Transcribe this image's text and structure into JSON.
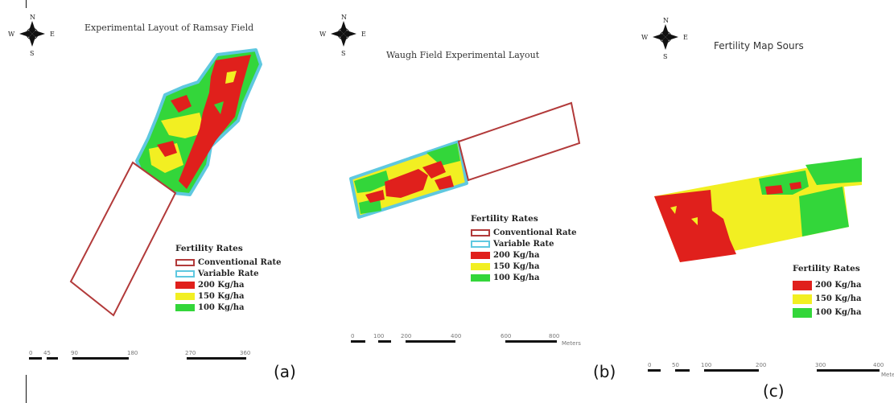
{
  "panels": [
    {
      "id": "a",
      "title": "Experimental Layout of Ramsay Field",
      "panel_label": "(a)",
      "compass": {
        "n": "N",
        "e": "E",
        "s": "S",
        "w": "W"
      },
      "legend": {
        "title": "Fertility Rates",
        "items": [
          {
            "label": "Conventional Rate",
            "kind": "outline",
            "color": "#b23a3a"
          },
          {
            "label": "Variable Rate",
            "kind": "outline",
            "color": "#5fc8e0"
          },
          {
            "label": "200 Kg/ha",
            "kind": "fill",
            "color": "#e0201c"
          },
          {
            "label": "150 Kg/ha",
            "kind": "fill",
            "color": "#f2ef22"
          },
          {
            "label": "100 Kg/ha",
            "kind": "fill",
            "color": "#33d63a"
          }
        ]
      },
      "scale_ticks": [
        "0",
        "45",
        "90",
        "180",
        "270",
        "360"
      ]
    },
    {
      "id": "b",
      "title": "Waugh Field Experimental Layout",
      "panel_label": "(b)",
      "compass": {
        "n": "N",
        "e": "E",
        "s": "S",
        "w": "W"
      },
      "legend": {
        "title": "Fertility Rates",
        "items": [
          {
            "label": "Conventional Rate",
            "kind": "outline",
            "color": "#b23a3a"
          },
          {
            "label": "Variable Rate",
            "kind": "outline",
            "color": "#5fc8e0"
          },
          {
            "label": "200 Kg/ha",
            "kind": "fill",
            "color": "#e0201c"
          },
          {
            "label": "150 Kg/ha",
            "kind": "fill",
            "color": "#f2ef22"
          },
          {
            "label": "100 Kg/ha",
            "kind": "fill",
            "color": "#33d63a"
          }
        ]
      },
      "scale_ticks": [
        "0",
        "100",
        "200",
        "400",
        "600",
        "800"
      ],
      "scale_unit": "Meters"
    },
    {
      "id": "c",
      "title": "Fertility Map Sours",
      "panel_label": "(c)",
      "compass": {
        "n": "N",
        "e": "E",
        "s": "S",
        "w": "W"
      },
      "legend": {
        "title": "Fertility Rates",
        "items": [
          {
            "label": "200 Kg/ha",
            "kind": "fill",
            "color": "#e0201c"
          },
          {
            "label": "150 Kg/ha",
            "kind": "fill",
            "color": "#f2ef22"
          },
          {
            "label": "100 Kg/ha",
            "kind": "fill",
            "color": "#33d63a"
          }
        ]
      },
      "scale_ticks": [
        "0",
        "50",
        "100",
        "200",
        "300",
        "400"
      ],
      "scale_unit": "Meters"
    }
  ]
}
